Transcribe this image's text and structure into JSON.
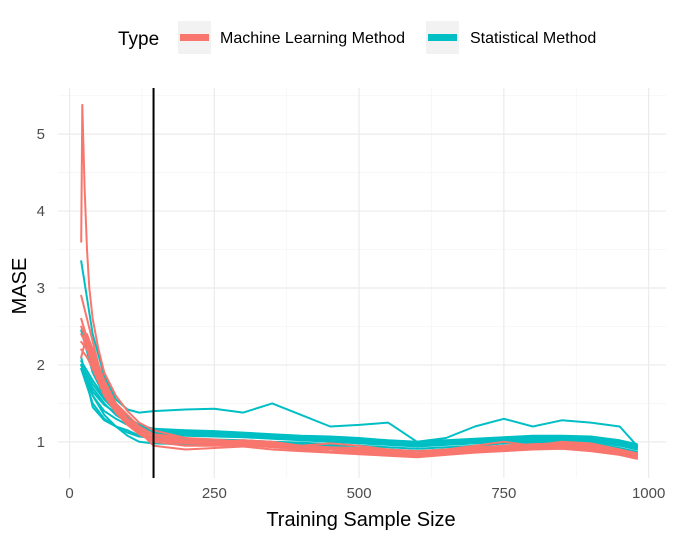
{
  "chart_data": {
    "type": "line",
    "xlabel": "Training Sample Size",
    "ylabel": "MASE",
    "xlim": [
      -20,
      1030
    ],
    "ylim": [
      0.53,
      5.6
    ],
    "x_ticks": [
      0,
      250,
      500,
      750,
      1000
    ],
    "y_ticks": [
      1,
      2,
      3,
      4,
      5
    ],
    "grid": true,
    "vline": 145,
    "legend": {
      "title": "Type",
      "position": "top",
      "entries": [
        {
          "name": "Machine Learning Method",
          "color": "#F8766D"
        },
        {
          "name": "Statistical Method",
          "color": "#00BFC4"
        }
      ]
    },
    "series": [
      {
        "type": "Statistical Method",
        "color": "#00BFC4",
        "x": [
          20,
          40,
          60,
          80,
          100,
          120,
          145,
          200,
          250,
          300,
          350,
          400,
          450,
          500,
          550,
          600,
          650,
          700,
          750,
          800,
          850,
          900,
          950,
          980
        ],
        "y": [
          3.35,
          2.4,
          1.85,
          1.55,
          1.42,
          1.38,
          1.4,
          1.42,
          1.43,
          1.38,
          1.5,
          1.35,
          1.2,
          1.22,
          1.25,
          1.0,
          1.05,
          1.2,
          1.3,
          1.2,
          1.28,
          1.25,
          1.2,
          0.95
        ]
      },
      {
        "type": "Statistical Method",
        "color": "#00BFC4",
        "x": [
          20,
          40,
          60,
          80,
          100,
          120,
          145,
          200,
          250,
          300,
          350,
          400,
          450,
          500,
          550,
          600,
          650,
          700,
          750,
          800,
          850,
          900,
          950,
          980
        ],
        "y": [
          2.0,
          1.75,
          1.55,
          1.4,
          1.3,
          1.2,
          1.15,
          1.13,
          1.12,
          1.1,
          1.08,
          1.06,
          1.05,
          1.03,
          1.0,
          0.98,
          1.0,
          1.02,
          1.04,
          1.06,
          1.06,
          1.05,
          1.0,
          0.95
        ]
      },
      {
        "type": "Statistical Method",
        "color": "#00BFC4",
        "x": [
          20,
          40,
          60,
          80,
          100,
          120,
          145,
          200,
          250,
          300,
          350,
          400,
          450,
          500,
          550,
          600,
          650,
          700,
          750,
          800,
          850,
          900,
          950,
          980
        ],
        "y": [
          1.95,
          1.7,
          1.5,
          1.35,
          1.25,
          1.17,
          1.12,
          1.1,
          1.09,
          1.07,
          1.05,
          1.03,
          1.02,
          1.0,
          0.98,
          0.96,
          0.98,
          1.0,
          1.02,
          1.04,
          1.04,
          1.02,
          0.97,
          0.92
        ]
      },
      {
        "type": "Statistical Method",
        "color": "#00BFC4",
        "x": [
          20,
          40,
          60,
          80,
          100,
          120,
          145,
          200,
          250,
          300,
          350,
          400,
          450,
          500,
          550,
          600,
          650,
          700,
          750,
          800,
          850,
          900,
          950,
          980
        ],
        "y": [
          2.05,
          1.8,
          1.58,
          1.42,
          1.32,
          1.22,
          1.17,
          1.15,
          1.14,
          1.12,
          1.1,
          1.08,
          1.07,
          1.05,
          1.02,
          1.0,
          1.02,
          1.04,
          1.06,
          1.08,
          1.08,
          1.07,
          1.02,
          0.97
        ]
      },
      {
        "type": "Statistical Method",
        "color": "#00BFC4",
        "x": [
          20,
          40,
          60,
          80,
          100,
          120,
          145,
          200,
          250,
          300,
          350,
          400,
          450,
          500,
          550,
          600,
          650,
          700,
          750,
          800,
          850,
          900,
          950,
          980
        ],
        "y": [
          2.45,
          1.9,
          1.6,
          1.45,
          1.32,
          1.22,
          1.15,
          1.12,
          1.1,
          1.08,
          1.06,
          1.05,
          1.04,
          1.02,
          1.0,
          0.97,
          0.99,
          1.01,
          1.03,
          1.05,
          1.05,
          1.03,
          0.98,
          0.93
        ]
      },
      {
        "type": "Statistical Method",
        "color": "#00BFC4",
        "x": [
          20,
          40,
          60,
          80,
          100,
          120,
          145,
          200,
          250,
          300,
          350,
          400,
          450,
          500,
          550,
          600,
          650,
          700,
          750,
          800,
          850,
          900,
          950,
          980
        ],
        "y": [
          2.0,
          1.6,
          1.4,
          1.3,
          1.22,
          1.14,
          1.1,
          1.08,
          1.07,
          1.06,
          1.04,
          1.02,
          1.0,
          0.98,
          0.96,
          0.94,
          0.96,
          0.98,
          1.0,
          1.02,
          1.02,
          1.0,
          0.95,
          0.9
        ]
      },
      {
        "type": "Statistical Method",
        "color": "#00BFC4",
        "x": [
          20,
          40,
          60,
          80,
          100,
          120,
          145,
          200,
          250,
          300,
          350,
          400,
          450,
          500,
          550,
          600,
          650,
          700,
          750,
          800,
          850,
          900,
          950,
          980
        ],
        "y": [
          2.0,
          1.65,
          1.48,
          1.38,
          1.28,
          1.2,
          1.14,
          1.12,
          1.11,
          1.09,
          1.07,
          1.05,
          1.04,
          1.02,
          0.99,
          0.97,
          0.99,
          1.01,
          1.03,
          1.05,
          1.05,
          1.04,
          0.99,
          0.94
        ]
      },
      {
        "type": "Statistical Method",
        "color": "#00BFC4",
        "x": [
          20,
          40,
          60,
          80,
          100,
          120,
          145,
          200,
          250,
          300,
          350,
          400,
          450,
          500,
          550,
          600,
          650,
          700,
          750,
          800,
          850,
          900,
          950,
          980
        ],
        "y": [
          1.95,
          1.5,
          1.3,
          1.2,
          1.12,
          1.07,
          1.05,
          1.03,
          1.02,
          1.0,
          0.98,
          0.97,
          0.95,
          0.92,
          0.9,
          0.88,
          0.9,
          0.92,
          0.95,
          0.98,
          0.98,
          0.96,
          0.9,
          0.85
        ]
      },
      {
        "type": "Statistical Method",
        "color": "#00BFC4",
        "x": [
          20,
          40,
          60,
          80,
          100,
          120,
          145,
          200,
          250,
          300,
          350,
          400,
          450,
          500,
          550,
          600,
          650,
          700,
          750,
          800,
          850,
          900,
          950,
          980
        ],
        "y": [
          2.1,
          1.45,
          1.28,
          1.2,
          1.15,
          1.08,
          1.06,
          1.04,
          1.03,
          1.02,
          1.0,
          0.99,
          0.97,
          0.95,
          0.93,
          0.91,
          0.93,
          0.95,
          0.98,
          1.0,
          1.0,
          0.98,
          0.92,
          0.87
        ]
      },
      {
        "type": "Statistical Method",
        "color": "#00BFC4",
        "x": [
          20,
          40,
          60,
          80,
          100,
          120,
          145,
          200,
          250,
          300,
          350,
          400,
          450,
          500,
          550,
          600,
          650,
          700,
          750,
          800,
          850,
          900,
          950,
          980
        ],
        "y": [
          2.0,
          1.6,
          1.35,
          1.2,
          1.08,
          1.0,
          0.98,
          0.97,
          0.96,
          0.95,
          0.94,
          0.92,
          0.9,
          0.88,
          0.86,
          0.84,
          0.85,
          0.88,
          0.9,
          0.93,
          0.93,
          0.9,
          0.85,
          0.8
        ]
      },
      {
        "type": "Machine Learning Method",
        "color": "#F8766D",
        "x": [
          20,
          22,
          26,
          30,
          34,
          40,
          50,
          60,
          80,
          100,
          120,
          145,
          200,
          250,
          300,
          350,
          400,
          450,
          500,
          550,
          600,
          650,
          700,
          750,
          800,
          850,
          900,
          950,
          980
        ],
        "y": [
          3.6,
          5.38,
          4.3,
          3.5,
          3.0,
          2.6,
          2.2,
          1.9,
          1.6,
          1.4,
          1.25,
          1.15,
          1.05,
          1.0,
          1.02,
          1.0,
          0.95,
          0.98,
          0.95,
          0.9,
          0.85,
          0.9,
          0.95,
          1.0,
          0.95,
          1.0,
          0.98,
          0.9,
          0.85
        ]
      },
      {
        "type": "Machine Learning Method",
        "color": "#F8766D",
        "x": [
          20,
          30,
          40,
          50,
          60,
          80,
          100,
          120,
          145,
          200,
          250,
          300,
          350,
          400,
          450,
          500,
          550,
          600,
          650,
          700,
          750,
          800,
          850,
          900,
          950,
          980
        ],
        "y": [
          2.9,
          2.6,
          2.3,
          2.0,
          1.8,
          1.5,
          1.35,
          1.2,
          1.1,
          1.05,
          1.03,
          1.0,
          0.98,
          0.95,
          0.93,
          0.92,
          0.9,
          0.88,
          0.9,
          0.93,
          0.95,
          0.97,
          0.98,
          0.95,
          0.9,
          0.85
        ]
      },
      {
        "type": "Machine Learning Method",
        "color": "#F8766D",
        "x": [
          20,
          30,
          40,
          50,
          60,
          80,
          100,
          120,
          145,
          200,
          250,
          300,
          350,
          400,
          450,
          500,
          550,
          600,
          650,
          700,
          750,
          800,
          850,
          900,
          950,
          980
        ],
        "y": [
          2.5,
          2.3,
          2.1,
          1.9,
          1.7,
          1.45,
          1.28,
          1.15,
          1.05,
          1.0,
          0.98,
          0.97,
          0.95,
          0.93,
          0.9,
          0.88,
          0.86,
          0.84,
          0.86,
          0.9,
          0.92,
          0.94,
          0.95,
          0.92,
          0.87,
          0.82
        ]
      },
      {
        "type": "Machine Learning Method",
        "color": "#F8766D",
        "x": [
          20,
          30,
          40,
          50,
          60,
          80,
          100,
          120,
          145,
          200,
          250,
          300,
          350,
          400,
          450,
          500,
          550,
          600,
          650,
          700,
          750,
          800,
          850,
          900,
          950,
          980
        ],
        "y": [
          2.3,
          2.2,
          2.0,
          1.8,
          1.6,
          1.38,
          1.22,
          1.1,
          1.0,
          0.95,
          0.95,
          0.96,
          0.93,
          0.9,
          0.87,
          0.86,
          0.84,
          0.82,
          0.85,
          0.88,
          0.9,
          0.92,
          0.93,
          0.9,
          0.85,
          0.8
        ]
      },
      {
        "type": "Machine Learning Method",
        "color": "#F8766D",
        "x": [
          20,
          30,
          40,
          50,
          60,
          80,
          100,
          120,
          145,
          200,
          250,
          300,
          350,
          400,
          450,
          500,
          550,
          600,
          650,
          700,
          750,
          800,
          850,
          900,
          950,
          980
        ],
        "y": [
          2.1,
          2.4,
          2.2,
          1.95,
          1.75,
          1.5,
          1.3,
          1.18,
          1.08,
          1.02,
          1.0,
          1.0,
          0.97,
          0.95,
          0.92,
          0.9,
          0.88,
          0.85,
          0.88,
          0.92,
          0.95,
          0.97,
          0.98,
          0.96,
          0.9,
          0.84
        ]
      },
      {
        "type": "Machine Learning Method",
        "color": "#F8766D",
        "x": [
          20,
          30,
          40,
          50,
          60,
          80,
          100,
          120,
          145,
          200,
          250,
          300,
          350,
          400,
          450,
          500,
          550,
          600,
          650,
          700,
          750,
          800,
          850,
          900,
          950,
          980
        ],
        "y": [
          2.4,
          2.25,
          2.05,
          1.85,
          1.65,
          1.42,
          1.25,
          1.12,
          1.02,
          0.98,
          0.97,
          0.98,
          0.95,
          0.92,
          0.9,
          0.88,
          0.85,
          0.83,
          0.87,
          0.9,
          0.93,
          0.95,
          0.96,
          0.93,
          0.88,
          0.83
        ]
      },
      {
        "type": "Machine Learning Method",
        "color": "#F8766D",
        "x": [
          20,
          30,
          40,
          50,
          60,
          80,
          100,
          120,
          145,
          200,
          250,
          300,
          350,
          400,
          450,
          500,
          550,
          600,
          650,
          700,
          750,
          800,
          850,
          900,
          950,
          980
        ],
        "y": [
          2.6,
          2.35,
          2.15,
          1.92,
          1.72,
          1.46,
          1.27,
          1.14,
          0.95,
          0.9,
          0.92,
          0.94,
          0.9,
          0.88,
          0.86,
          0.84,
          0.82,
          0.8,
          0.83,
          0.86,
          0.88,
          0.9,
          0.91,
          0.88,
          0.83,
          0.78
        ]
      },
      {
        "type": "Machine Learning Method",
        "color": "#F8766D",
        "x": [
          20,
          30,
          40,
          50,
          60,
          80,
          100,
          120,
          145,
          200,
          250,
          300,
          350,
          400,
          450,
          500,
          550,
          600,
          650,
          700,
          750,
          800,
          850,
          900,
          950,
          980
        ],
        "y": [
          2.2,
          2.1,
          1.95,
          1.78,
          1.6,
          1.4,
          1.23,
          1.11,
          1.04,
          1.0,
          0.99,
          0.99,
          0.96,
          0.94,
          0.91,
          0.89,
          0.87,
          0.84,
          0.87,
          0.91,
          0.94,
          0.96,
          0.97,
          0.94,
          0.89,
          0.83
        ]
      }
    ]
  }
}
